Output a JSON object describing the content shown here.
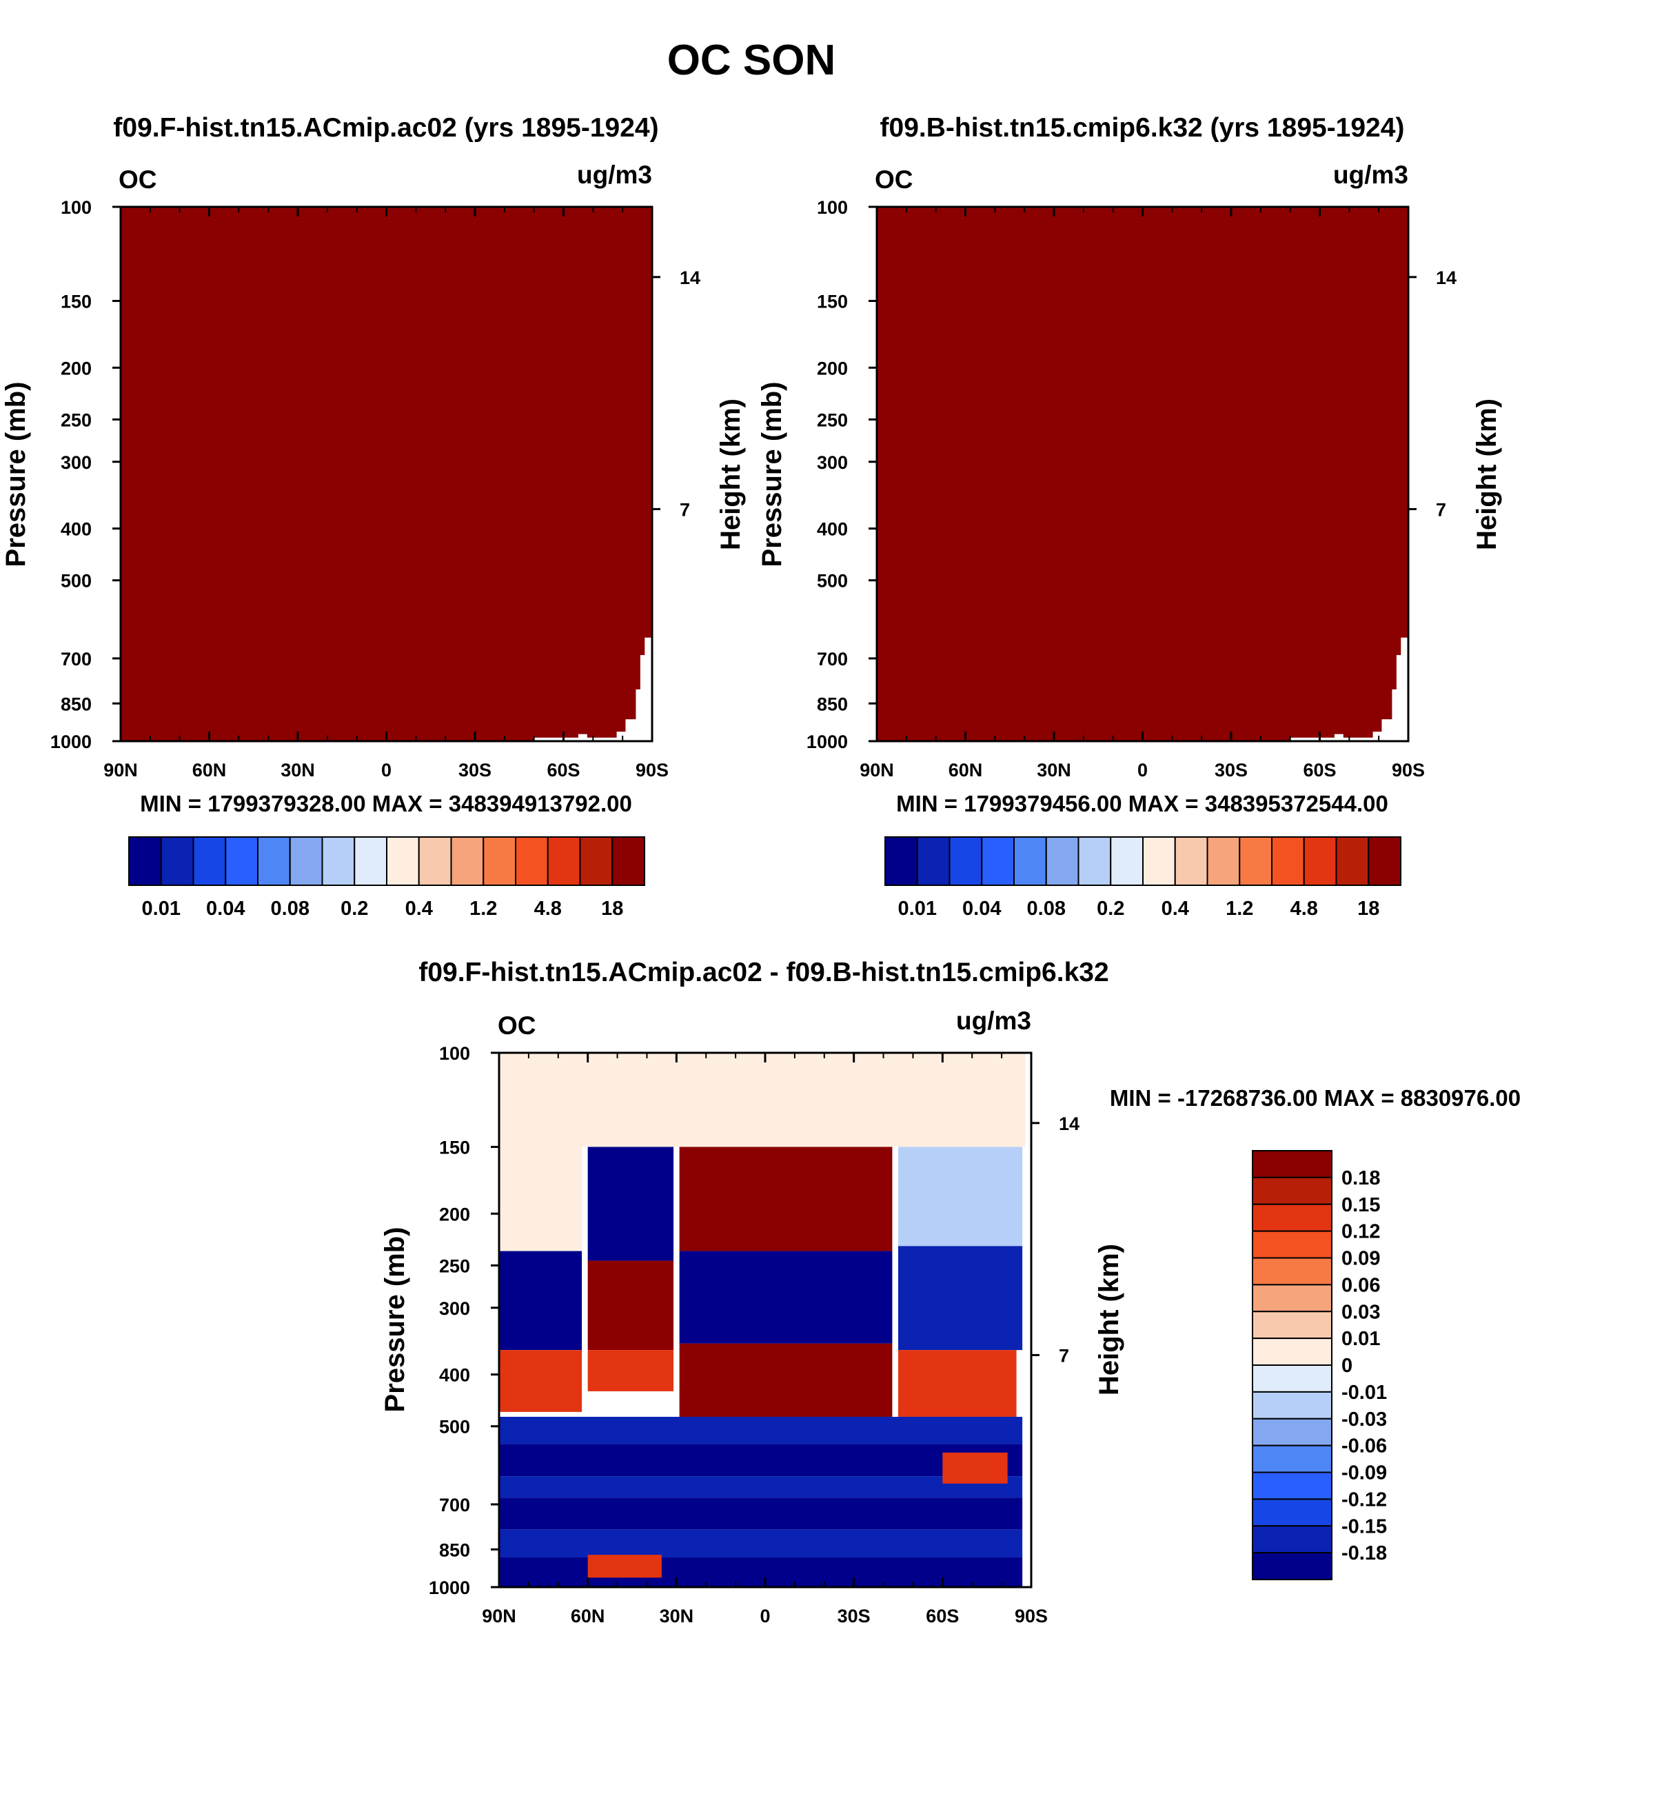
{
  "page_title": "OC SON",
  "colors": {
    "palette13": [
      "#00008b",
      "#0a23b2",
      "#1746e6",
      "#295fff",
      "#4e86f5",
      "#84a8f0",
      "#b6cff8",
      "#e0ecfb",
      "#fdeee0",
      "#f9c9ad",
      "#f6a47c",
      "#f77a45",
      "#f55222",
      "#e33511",
      "#b81f07",
      "#8b0000"
    ]
  },
  "chart_data": [
    {
      "id": "left",
      "type": "heatmap",
      "title": "f09.F-hist.tn15.ACmip.ac02 (yrs 1895-1924)",
      "left_label": "OC",
      "right_label": "ug/m3",
      "ylabel": "Pressure (mb)",
      "ylabel_right": "Height (km)",
      "x_ticks": [
        "90N",
        "60N",
        "30N",
        "0",
        "30S",
        "60S",
        "90S"
      ],
      "x_range": [
        90,
        -90
      ],
      "y_range_mb": [
        100,
        1000
      ],
      "y_scale": "log",
      "y_ticks": [
        100,
        150,
        200,
        250,
        300,
        400,
        500,
        700,
        850,
        1000
      ],
      "y_ticks_right_km": [
        14,
        7
      ],
      "fill_color": "#8b0000",
      "missing_region_note": "",
      "min_max": "MIN = 1799379328.00  MAX = 348394913792.00",
      "colorbar_labels": [
        "0.01",
        "0.04",
        "0.08",
        "0.2",
        "0.4",
        "1.2",
        "4.8",
        "18"
      ]
    },
    {
      "id": "right",
      "type": "heatmap",
      "title": "f09.B-hist.tn15.cmip6.k32 (yrs 1895-1924)",
      "left_label": "OC",
      "right_label": "ug/m3",
      "ylabel": "Pressure (mb)",
      "ylabel_right": "Height (km)",
      "x_ticks": [
        "90N",
        "60N",
        "30N",
        "0",
        "30S",
        "60S",
        "90S"
      ],
      "x_range": [
        90,
        -90
      ],
      "y_range_mb": [
        100,
        1000
      ],
      "y_scale": "log",
      "y_ticks": [
        100,
        150,
        200,
        250,
        300,
        400,
        500,
        700,
        850,
        1000
      ],
      "y_ticks_right_km": [
        14,
        7
      ],
      "fill_color": "#8b0000",
      "min_max": "MIN = 1799379456.00  MAX = 348395372544.00",
      "colorbar_labels": [
        "0.01",
        "0.04",
        "0.08",
        "0.2",
        "0.4",
        "1.2",
        "4.8",
        "18"
      ]
    },
    {
      "id": "diff",
      "type": "heatmap",
      "title": "f09.F-hist.tn15.ACmip.ac02 - f09.B-hist.tn15.cmip6.k32",
      "left_label": "OC",
      "right_label": "ug/m3",
      "ylabel": "Pressure (mb)",
      "ylabel_right": "Height (km)",
      "x_ticks": [
        "90N",
        "60N",
        "30N",
        "0",
        "30S",
        "60S",
        "90S"
      ],
      "x_range": [
        90,
        -90
      ],
      "y_range_mb": [
        100,
        1000
      ],
      "y_scale": "log",
      "y_ticks": [
        100,
        150,
        200,
        250,
        300,
        400,
        500,
        700,
        850,
        1000
      ],
      "y_ticks_right_km": [
        14,
        7
      ],
      "min_max": "MIN = -17268736.00  MAX = 8830976.00",
      "colorbar_labels": [
        "0.18",
        "0.15",
        "0.12",
        "0.09",
        "0.06",
        "0.03",
        "0.01",
        "0",
        "-0.01",
        "-0.03",
        "-0.06",
        "-0.09",
        "-0.12",
        "-0.15",
        "-0.18"
      ],
      "colorbar_colors": [
        "#8b0000",
        "#b81f07",
        "#e33511",
        "#f55222",
        "#f77a45",
        "#f6a47c",
        "#f9c9ad",
        "#fdeee0",
        "#e0ecfb",
        "#b6cff8",
        "#84a8f0",
        "#4e86f5",
        "#295fff",
        "#1746e6",
        "#0a23b2",
        "#00008b"
      ],
      "regions": [
        {
          "lat": [
            90,
            90
          ],
          "p": [
            100,
            150
          ],
          "level": "0"
        },
        {
          "lat": [
            90,
            62
          ],
          "p": [
            150,
            235
          ],
          "level": "0.01"
        },
        {
          "lat": [
            60,
            31
          ],
          "p": [
            150,
            245
          ],
          "level": "-0.18"
        },
        {
          "lat": [
            29,
            -43
          ],
          "p": [
            150,
            235
          ],
          "level": "0.18"
        },
        {
          "lat": [
            -45,
            -87
          ],
          "p": [
            150,
            230
          ],
          "level": "-0.01"
        },
        {
          "lat": [
            90,
            62
          ],
          "p": [
            235,
            360
          ],
          "level": "-0.18"
        },
        {
          "lat": [
            60,
            31
          ],
          "p": [
            245,
            360
          ],
          "level": "0.18"
        },
        {
          "lat": [
            29,
            -43
          ],
          "p": [
            235,
            350
          ],
          "level": "-0.18"
        },
        {
          "lat": [
            -45,
            -87
          ],
          "p": [
            230,
            360
          ],
          "level": "-0.15"
        },
        {
          "lat": [
            90,
            62
          ],
          "p": [
            360,
            470
          ],
          "level": "0.15"
        },
        {
          "lat": [
            60,
            31
          ],
          "p": [
            360,
            430
          ],
          "level": "0.15"
        },
        {
          "lat": [
            29,
            -43
          ],
          "p": [
            350,
            480
          ],
          "level": "0.18"
        },
        {
          "lat": [
            -45,
            -85
          ],
          "p": [
            360,
            480
          ],
          "level": "0.15"
        },
        {
          "lat": [
            90,
            -87
          ],
          "p": [
            480,
            540
          ],
          "level": "-0.15"
        },
        {
          "lat": [
            90,
            -87
          ],
          "p": [
            540,
            620
          ],
          "level": "-0.18"
        },
        {
          "lat": [
            90,
            -87
          ],
          "p": [
            620,
            680
          ],
          "level": "-0.15"
        },
        {
          "lat": [
            90,
            -87
          ],
          "p": [
            680,
            780
          ],
          "level": "-0.18"
        },
        {
          "lat": [
            90,
            -87
          ],
          "p": [
            780,
            880
          ],
          "level": "-0.15"
        },
        {
          "lat": [
            90,
            -87
          ],
          "p": [
            880,
            1000
          ],
          "level": "-0.18"
        },
        {
          "lat": [
            60,
            35
          ],
          "p": [
            870,
            960
          ],
          "level": "0.15"
        },
        {
          "lat": [
            -60,
            -82
          ],
          "p": [
            560,
            640
          ],
          "level": "0.15"
        }
      ]
    }
  ]
}
